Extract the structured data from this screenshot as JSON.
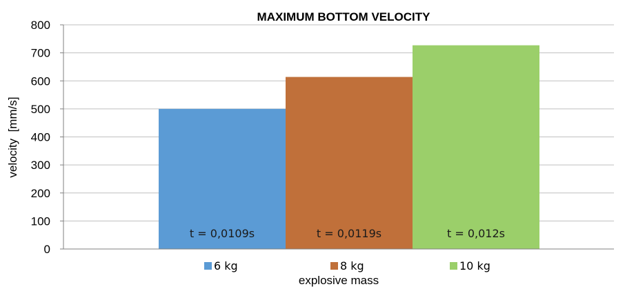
{
  "chart_data": {
    "type": "bar",
    "title": "MAXIMUM BOTTOM VELOCITY",
    "xlabel": "explosive mass",
    "ylabel": "velocity  [mm/s]",
    "ylim": [
      0,
      800
    ],
    "yticks": [
      0,
      100,
      200,
      300,
      400,
      500,
      600,
      700,
      800
    ],
    "grid": true,
    "legend_position": "bottom",
    "series": [
      {
        "name": "6 kg",
        "value": 500,
        "color": "#5b9bd5",
        "label": "t = 0,0109s"
      },
      {
        "name": "8 kg",
        "value": 614,
        "color": "#c0703a",
        "label": "t = 0,0119s"
      },
      {
        "name": "10 kg",
        "value": 727,
        "color": "#9bcf6a",
        "label": "t = 0,012s"
      }
    ]
  }
}
